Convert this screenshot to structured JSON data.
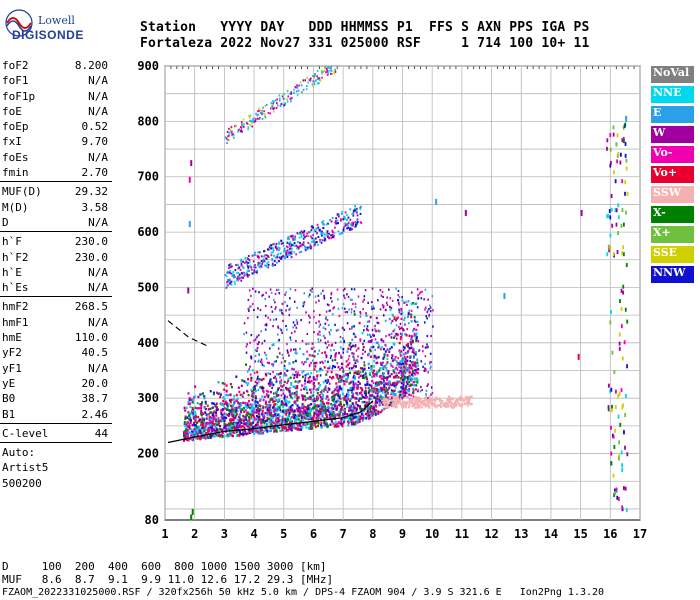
{
  "brand": {
    "company": "Lowell",
    "product": "DIGISONDE"
  },
  "header": {
    "line1": "Station   YYYY DAY   DDD HHMMSS P1  FFS S AXN PPS IGA PS",
    "line2": "Fortaleza 2022 Nov27 331 025000 RSF     1 714 100 10+ 11"
  },
  "params": [
    {
      "k": "foF2",
      "v": "8.200"
    },
    {
      "k": "foF1",
      "v": "N/A"
    },
    {
      "k": "foF1p",
      "v": "N/A"
    },
    {
      "k": "foE",
      "v": "N/A"
    },
    {
      "k": "foEp",
      "v": "0.52"
    },
    {
      "k": "fxI",
      "v": "9.70"
    },
    {
      "k": "foEs",
      "v": "N/A"
    },
    {
      "k": "fmin",
      "v": "2.70"
    },
    {
      "sep": true
    },
    {
      "k": "MUF(D)",
      "v": "29.32"
    },
    {
      "k": "M(D)",
      "v": "3.58"
    },
    {
      "k": "D",
      "v": "N/A"
    },
    {
      "sep": true
    },
    {
      "k": "h`F",
      "v": "230.0"
    },
    {
      "k": "h`F2",
      "v": "230.0"
    },
    {
      "k": "h`E",
      "v": "N/A"
    },
    {
      "k": "h`Es",
      "v": "N/A"
    },
    {
      "sep": true
    },
    {
      "k": "hmF2",
      "v": "268.5"
    },
    {
      "k": "hmF1",
      "v": "N/A"
    },
    {
      "k": "hmE",
      "v": "110.0"
    },
    {
      "k": "yF2",
      "v": "40.5"
    },
    {
      "k": "yF1",
      "v": "N/A"
    },
    {
      "k": "yE",
      "v": "20.0"
    },
    {
      "k": "B0",
      "v": "38.7"
    },
    {
      "k": "B1",
      "v": "2.46"
    },
    {
      "sep": true
    },
    {
      "k": "C-level",
      "v": "44"
    },
    {
      "sep": true
    },
    {
      "k": "Auto:",
      "v": ""
    },
    {
      "k": "Artist5",
      "v": ""
    },
    {
      "k": "500200",
      "v": ""
    }
  ],
  "legend": [
    {
      "label": "NoVal",
      "color": "#808080"
    },
    {
      "label": "NNE",
      "color": "#00d8f0"
    },
    {
      "label": "E",
      "color": "#2aa0e8"
    },
    {
      "label": "W",
      "color": "#a000a0"
    },
    {
      "label": "Vo-",
      "color": "#f000b0"
    },
    {
      "label": "Vo+",
      "color": "#e80030"
    },
    {
      "label": "SSW",
      "color": "#f5b0b0"
    },
    {
      "label": "X-",
      "color": "#008000"
    },
    {
      "label": "X+",
      "color": "#70c040"
    },
    {
      "label": "SSE",
      "color": "#d0d000"
    },
    {
      "label": "NNW",
      "color": "#1010d0"
    }
  ],
  "chart_data": {
    "type": "scatter",
    "xlim": [
      1,
      17
    ],
    "ylim": [
      80,
      900
    ],
    "x_ticks": [
      "1",
      "2",
      "3",
      "4",
      "5",
      "6",
      "7",
      "8",
      "9",
      "10",
      "11",
      "12",
      "13",
      "14",
      "15",
      "16",
      "17"
    ],
    "y_ticks": [
      "900",
      "800",
      "700",
      "600",
      "500",
      "400",
      "300",
      "200",
      "80"
    ],
    "grid": true,
    "curve": [
      [
        1.1,
        220
      ],
      [
        2,
        230
      ],
      [
        3,
        240
      ],
      [
        4,
        245
      ],
      [
        5,
        252
      ],
      [
        6,
        258
      ],
      [
        7,
        265
      ],
      [
        7.6,
        275
      ],
      [
        8,
        295
      ]
    ],
    "dashed_curve": [
      [
        1.1,
        440
      ],
      [
        1.8,
        410
      ],
      [
        2.4,
        395
      ]
    ]
  },
  "bottom": {
    "d_line": "D     100  200  400  600  800 1000 1500 3000 [km]",
    "muf_line": "MUF   8.6  8.7  9.1  9.9 11.0 12.6 17.2 29.3 [MHz]",
    "footer": "FZAOM_2022331025000.RSF / 320fx256h 50 kHz 5.0 km / DPS-4 FZAOM 904 / 3.9 S 321.6 E   Ion2Png 1.3.20"
  }
}
